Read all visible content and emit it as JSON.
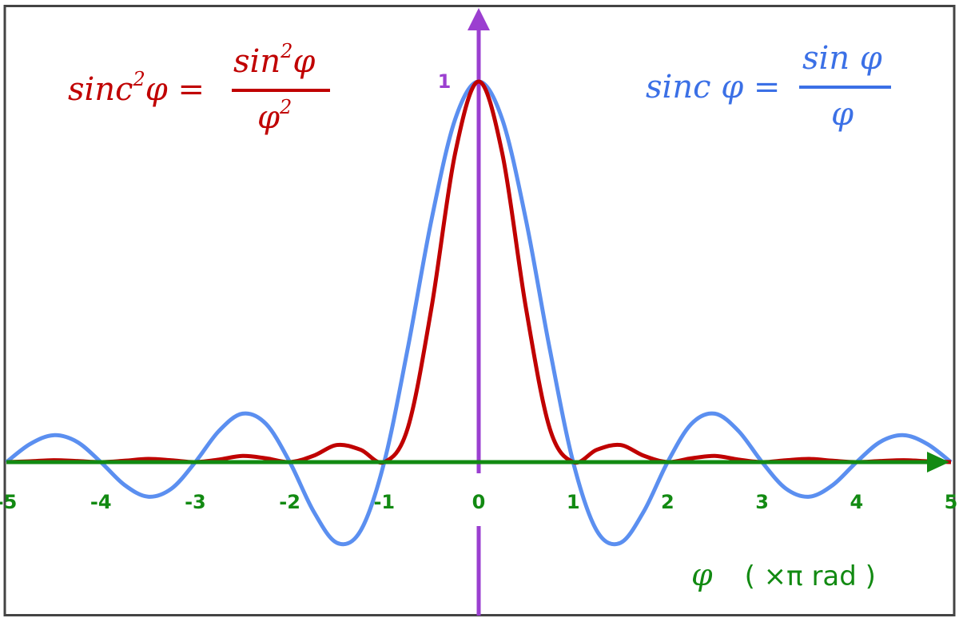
{
  "colors": {
    "sinc": "#5b8ff0",
    "sinc2": "#c00000",
    "x_axis": "#128a12",
    "y_axis": "#9b3fd0",
    "border": "#444444"
  },
  "chart_data": {
    "type": "line",
    "xlim": [
      -5,
      5
    ],
    "ylim": [
      -0.3,
      1.05
    ],
    "grid": false,
    "x_tick_labels": [
      "-5",
      "-4",
      "-3",
      "-2",
      "-1",
      "0",
      "1",
      "2",
      "3",
      "4",
      "5"
    ],
    "y_tick_labels": [
      "1"
    ],
    "xlabel": {
      "symbol": "φ",
      "unit": "( ×π  rad )"
    },
    "x": [
      -5,
      -4.75,
      -4.5,
      -4.25,
      -4,
      -3.75,
      -3.5,
      -3.25,
      -3,
      -2.75,
      -2.5,
      -2.25,
      -2,
      -1.75,
      -1.5,
      -1.25,
      -1,
      -0.75,
      -0.5,
      -0.25,
      0,
      0.25,
      0.5,
      0.75,
      1,
      1.25,
      1.5,
      1.75,
      2,
      2.25,
      2.5,
      2.75,
      3,
      3.25,
      3.5,
      3.75,
      4,
      4.25,
      4.5,
      4.75,
      5
    ],
    "series": [
      {
        "key": "sinc",
        "label": {
          "lhs": "sinc φ =",
          "num": "sin φ",
          "den": "φ"
        },
        "values": [
          0,
          0.0474,
          0.0707,
          0.053,
          0,
          -0.06,
          -0.0909,
          -0.0693,
          0,
          0.0818,
          0.1273,
          0.1,
          0,
          -0.1286,
          -0.2122,
          -0.1801,
          0,
          0.3001,
          0.6366,
          0.9003,
          1,
          0.9003,
          0.6366,
          0.3001,
          0,
          -0.1801,
          -0.2122,
          -0.1286,
          0,
          0.1,
          0.1273,
          0.0818,
          0,
          -0.0693,
          -0.0909,
          -0.06,
          0,
          0.053,
          0.0707,
          0.0474,
          0
        ]
      },
      {
        "key": "sinc2",
        "label": {
          "lhs_a": "sinc",
          "lhs_sup": "2",
          "lhs_b": "φ =",
          "num_a": "sin",
          "num_sup": "2",
          "num_b": "φ",
          "den_a": "φ",
          "den_sup": "2"
        },
        "values": [
          0,
          0.0022,
          0.005,
          0.0028,
          0,
          0.0036,
          0.0083,
          0.0048,
          0,
          0.0067,
          0.0162,
          0.01,
          0,
          0.0165,
          0.045,
          0.0324,
          0,
          0.0901,
          0.4053,
          0.8106,
          1,
          0.8106,
          0.4053,
          0.0901,
          0,
          0.0324,
          0.045,
          0.0165,
          0,
          0.01,
          0.0162,
          0.0067,
          0,
          0.0048,
          0.0083,
          0.0036,
          0,
          0.0028,
          0.005,
          0.0022,
          0
        ]
      }
    ]
  }
}
